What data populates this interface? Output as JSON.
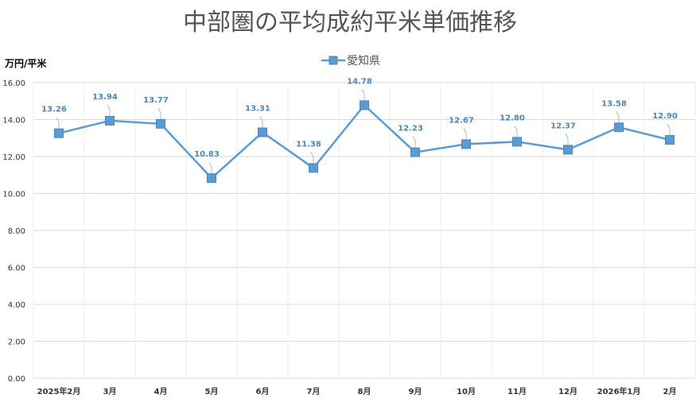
{
  "chart_data": {
    "type": "line",
    "title": "中部圏の平均成約平米単価推移",
    "ylabel": "万円/平米",
    "xlabel": "",
    "categories": [
      "2025年2月",
      "3月",
      "4月",
      "5月",
      "6月",
      "7月",
      "8月",
      "9月",
      "10月",
      "11月",
      "12月",
      "2026年1月",
      "2月"
    ],
    "series": [
      {
        "name": "愛知県",
        "values": [
          13.26,
          13.94,
          13.77,
          10.83,
          13.31,
          11.38,
          14.78,
          12.23,
          12.67,
          12.8,
          12.37,
          13.58,
          12.9
        ],
        "labels": [
          "13.26",
          "13.94",
          "13.77",
          "10.83",
          "13.31",
          "11.38",
          "14.78",
          "12.23",
          "12.67",
          "12.80",
          "12.37",
          "13.58",
          "12.90"
        ]
      }
    ],
    "ylim": [
      0,
      16
    ],
    "yticks": [
      "0.00",
      "2.00",
      "4.00",
      "6.00",
      "8.00",
      "10.00",
      "12.00",
      "14.00",
      "16.00"
    ],
    "grid": true,
    "legend": "top-center",
    "colors": {
      "series": "#5b9bd5",
      "marker_edge": "#4a86c0",
      "grid": "#d9d9d9",
      "label": "#4a86c0"
    }
  }
}
